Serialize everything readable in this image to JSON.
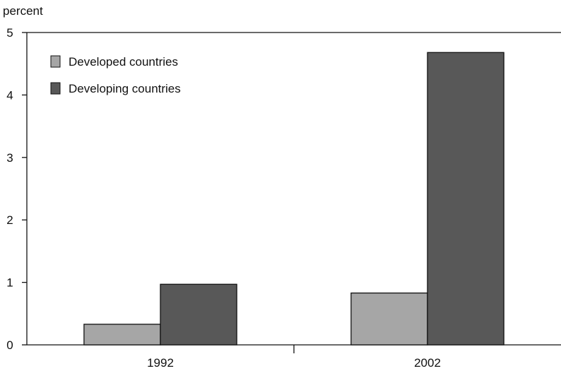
{
  "chart_data": {
    "type": "bar",
    "title": "",
    "xlabel": "",
    "ylabel": "percent",
    "ylim": [
      0,
      5
    ],
    "yticks": [
      0,
      1,
      2,
      3,
      4,
      5
    ],
    "categories": [
      "1992",
      "2002"
    ],
    "series": [
      {
        "name": "Developed countries",
        "values": [
          0.33,
          0.83
        ],
        "color": "#a6a6a6"
      },
      {
        "name": "Developing countries",
        "values": [
          0.97,
          4.68
        ],
        "color": "#585858"
      }
    ],
    "legend_position": "top-left",
    "grid": false,
    "colors": {
      "axis": "#111111",
      "bar_stroke": "#111111"
    }
  }
}
